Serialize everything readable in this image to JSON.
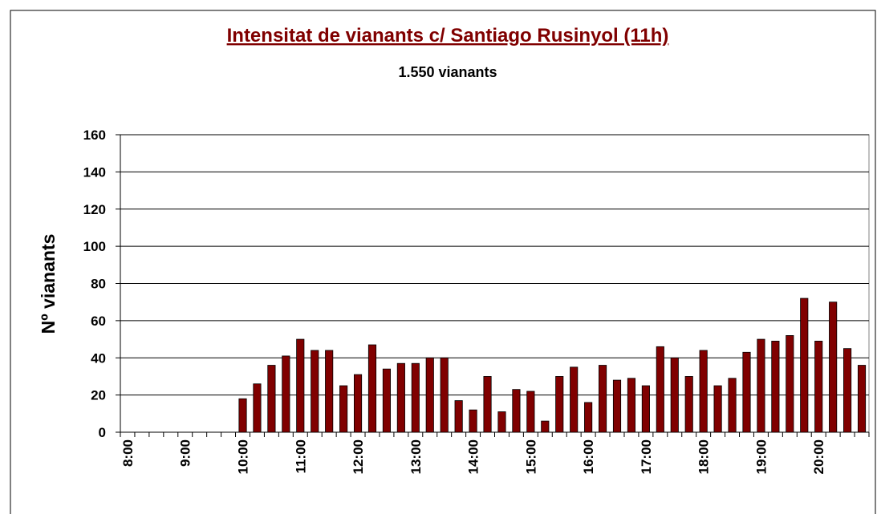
{
  "chart_data": {
    "type": "bar",
    "title": "Intensitat de vianants c/ Santiago Rusinyol (11h)",
    "subtitle": "1.550 vianants",
    "y_label": "Nº vianants",
    "categories": [
      "8:00",
      null,
      null,
      null,
      "9:00",
      null,
      null,
      null,
      "10:00",
      null,
      null,
      null,
      "11:00",
      null,
      null,
      null,
      "12:00",
      null,
      null,
      null,
      "13:00",
      null,
      null,
      null,
      "14:00",
      null,
      null,
      null,
      "15:00",
      null,
      null,
      null,
      "16:00",
      null,
      null,
      null,
      "17:00",
      null,
      null,
      null,
      "18:00",
      null,
      null,
      null,
      "19:00",
      null,
      null,
      null,
      "20:00",
      null,
      null,
      null
    ],
    "values": [
      null,
      null,
      null,
      null,
      null,
      null,
      null,
      null,
      18,
      26,
      36,
      41,
      50,
      44,
      44,
      25,
      31,
      47,
      34,
      37,
      37,
      40,
      40,
      17,
      12,
      30,
      11,
      23,
      22,
      6,
      30,
      35,
      16,
      36,
      28,
      29,
      25,
      46,
      40,
      30,
      44,
      25,
      29,
      43,
      50,
      49,
      52,
      72,
      49,
      70,
      45,
      36
    ],
    "color": "#800000",
    "ylim": [
      0,
      160
    ],
    "yticks": [
      0,
      20,
      40,
      60,
      80,
      100,
      120,
      140,
      160
    ],
    "grid": true
  }
}
